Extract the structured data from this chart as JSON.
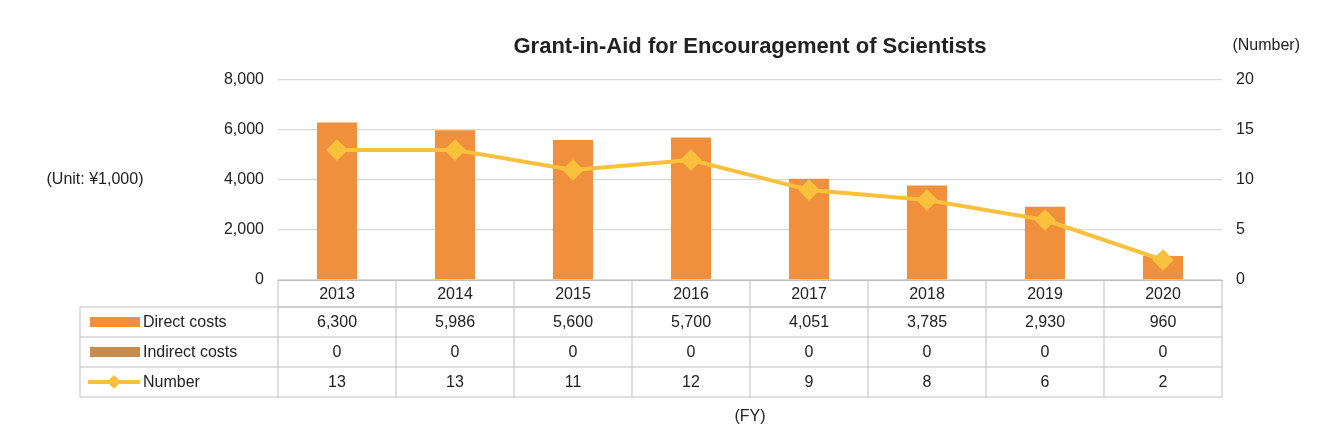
{
  "chart_data": {
    "type": "bar",
    "title": "Grant-in-Aid for Encouragement of Scientists",
    "y2label": "(Number)",
    "annotations": [
      "(Unit: ¥1,000)",
      "(FY)"
    ],
    "categories": [
      "2013",
      "2014",
      "2015",
      "2016",
      "2017",
      "2018",
      "2019",
      "2020"
    ],
    "series": [
      {
        "name": "Direct costs",
        "color": "#f0903c",
        "values": [
          6300,
          5986,
          5600,
          5700,
          4051,
          3785,
          2930,
          960
        ],
        "value_labels": [
          "6,300",
          "5,986",
          "5,600",
          "5,700",
          "4,051",
          "3,785",
          "2,930",
          "960"
        ]
      },
      {
        "name": "Indirect costs",
        "color": "#c98a4e",
        "values": [
          0,
          0,
          0,
          0,
          0,
          0,
          0,
          0
        ],
        "value_labels": [
          "0",
          "0",
          "0",
          "0",
          "0",
          "0",
          "0",
          "0"
        ]
      },
      {
        "name": "Number",
        "type": "line",
        "axis": "y2",
        "color": "#f9c03c",
        "marker": "diamond",
        "values": [
          13,
          13,
          11,
          12,
          9,
          8,
          6,
          2
        ],
        "value_labels": [
          "13",
          "13",
          "11",
          "12",
          "9",
          "8",
          "6",
          "2"
        ]
      }
    ],
    "stacked": true,
    "ylim": [
      0,
      8000
    ],
    "yticks": [
      0,
      {
        "value": 2000,
        "label": "2,000"
      },
      {
        "value": 4000,
        "label": "4,000"
      },
      {
        "value": 6000,
        "label": "6,000"
      },
      {
        "value": 8000,
        "label": "8,000"
      }
    ],
    "y2lim": [
      0,
      20
    ],
    "y2ticks": [
      0,
      5,
      10,
      15,
      20
    ],
    "grid": "y",
    "legend": "bottom"
  }
}
